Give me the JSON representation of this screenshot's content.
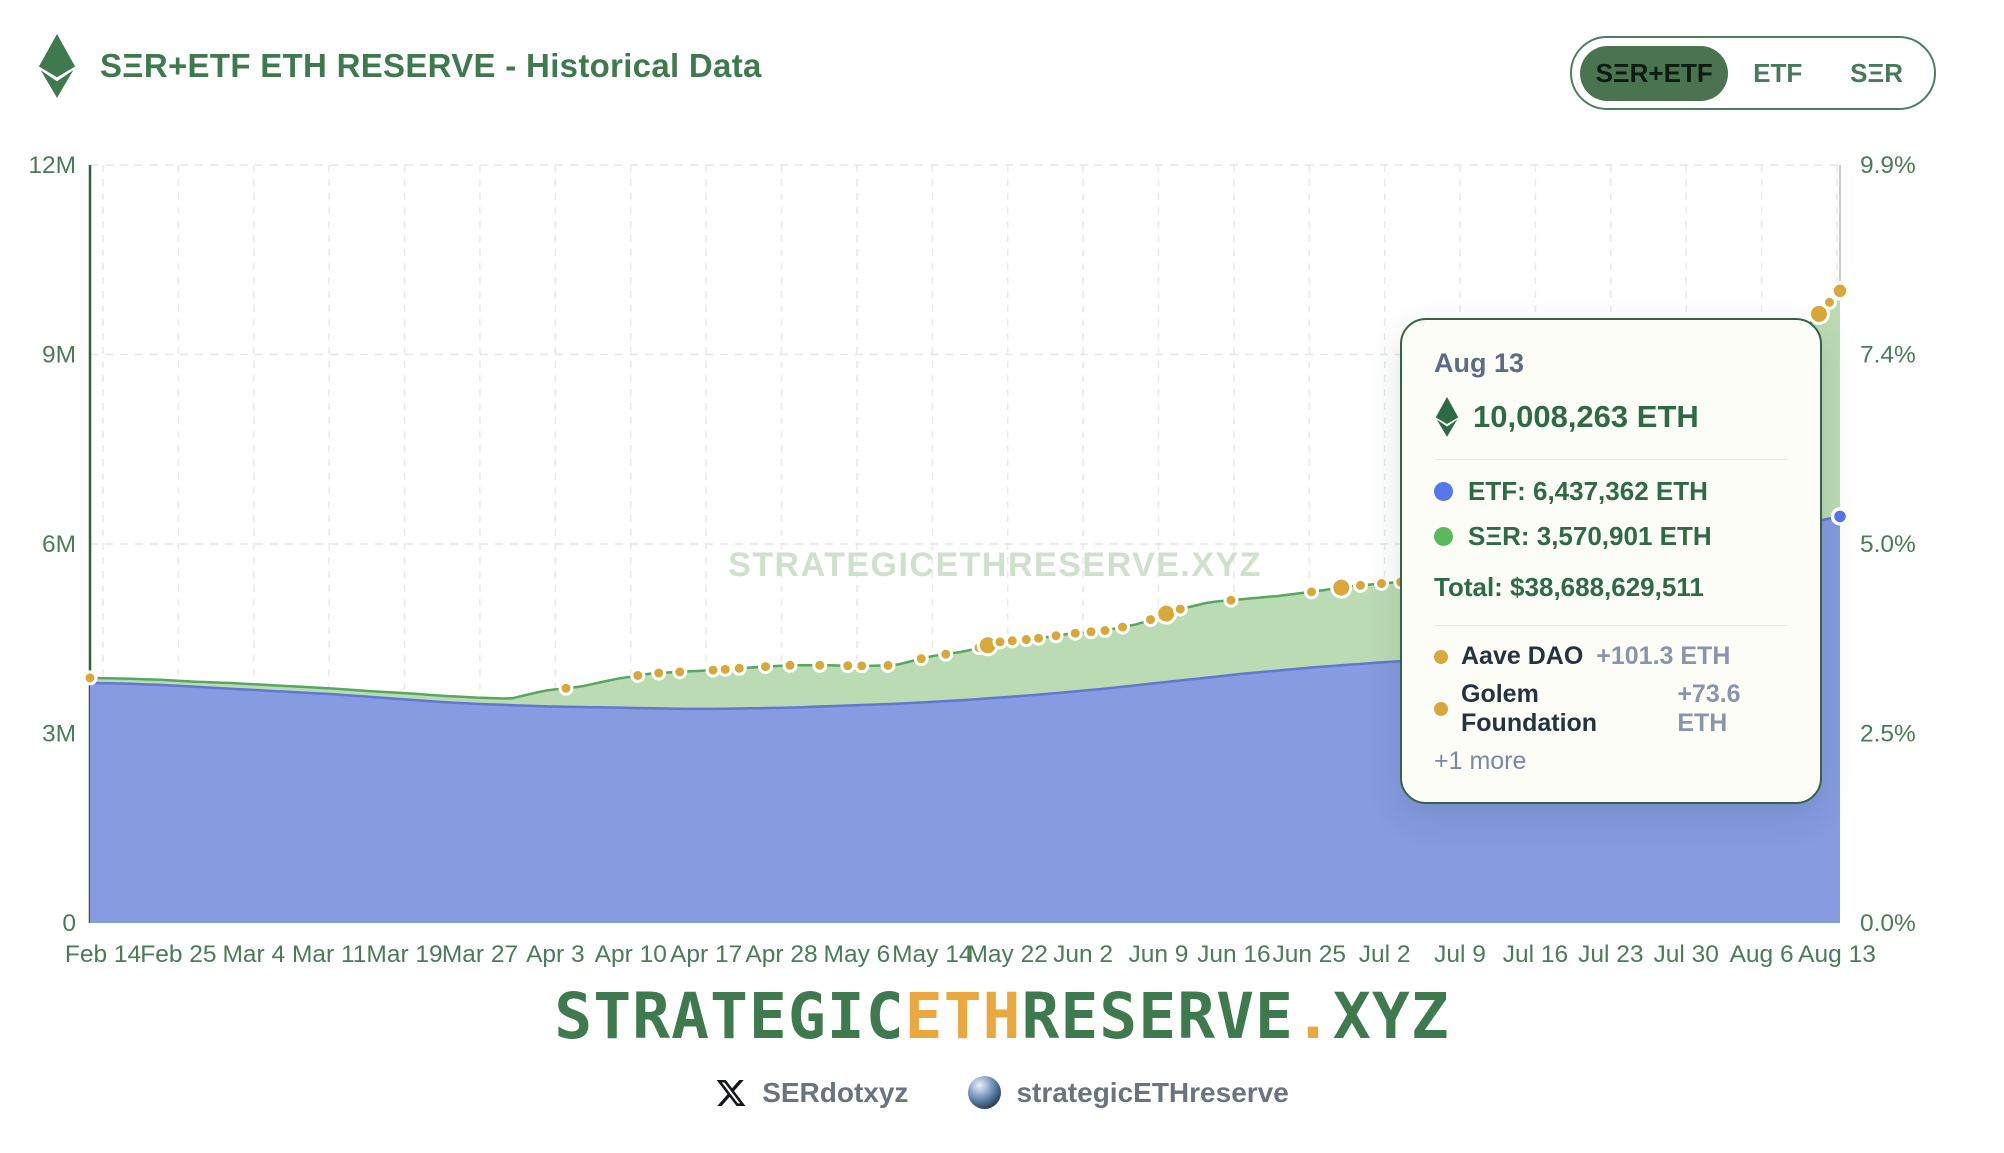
{
  "theme": {
    "green_dark": "#3e7a4e",
    "green_text": "#4a7c58",
    "orange": "#eaa83e",
    "etf_fill": "#8398e3",
    "etf_line": "#6277d2",
    "ser_fill": "#b5d8ae",
    "ser_line": "#57a75f",
    "gold": "#d9a83a",
    "legend_etf": "#5577e8",
    "legend_ser": "#5cb85f"
  },
  "header": {
    "title": "SΞR+ETF ETH RESERVE - Historical Data",
    "toggle_options": [
      {
        "label": "SΞR+ETF",
        "active": true
      },
      {
        "label": "ETF",
        "active": false
      },
      {
        "label": "SΞR",
        "active": false
      }
    ]
  },
  "chart_data": {
    "type": "area",
    "stacked": true,
    "title": "SΞR+ETF ETH RESERVE - Historical Data",
    "watermark": "STRATEGICETHRESERVE.XYZ",
    "grid": true,
    "legend_position": "tooltip-only",
    "x_tick_labels": [
      "Feb 14",
      "Feb 25",
      "Mar 4",
      "Mar 11",
      "Mar 19",
      "Mar 27",
      "Apr 3",
      "Apr 10",
      "Apr 17",
      "Apr 28",
      "May 6",
      "May 14",
      "May 22",
      "Jun 2",
      "Jun 9",
      "Jun 16",
      "Jun 25",
      "Jul 2",
      "Jul 9",
      "Jul 16",
      "Jul 23",
      "Jul 30",
      "Aug 6",
      "Aug 13"
    ],
    "ylim_m": [
      0,
      12
    ],
    "y_left_ticks": [
      {
        "label": "0",
        "value": 0
      },
      {
        "label": "3M",
        "value": 3
      },
      {
        "label": "6M",
        "value": 6
      },
      {
        "label": "9M",
        "value": 9
      },
      {
        "label": "12M",
        "value": 12
      }
    ],
    "y_right_ticks": [
      {
        "label": "0.0%",
        "value": 0
      },
      {
        "label": "2.5%",
        "value": 3
      },
      {
        "label": "5.0%",
        "value": 6
      },
      {
        "label": "7.4%",
        "value": 9
      },
      {
        "label": "9.9%",
        "value": 12
      }
    ],
    "series": [
      {
        "name": "ETF",
        "fill": "#8398e3",
        "line": "#6277d2",
        "values_m": [
          3.8,
          3.79,
          3.77,
          3.74,
          3.71,
          3.68,
          3.65,
          3.62,
          3.58,
          3.54,
          3.5,
          3.47,
          3.45,
          3.43,
          3.42,
          3.41,
          3.4,
          3.39,
          3.39,
          3.4,
          3.41,
          3.43,
          3.45,
          3.47,
          3.5,
          3.53,
          3.57,
          3.61,
          3.66,
          3.71,
          3.77,
          3.83,
          3.89,
          3.95,
          4.0,
          4.05,
          4.09,
          4.13,
          4.16,
          4.2,
          4.28,
          4.38,
          4.52,
          4.7,
          4.95,
          5.25,
          5.6,
          5.92,
          6.15,
          6.32,
          6.44
        ]
      },
      {
        "name": "SΞR",
        "fill": "#b5d8ae",
        "line": "#57a75f",
        "stack_total_values_m": [
          3.88,
          3.87,
          3.85,
          3.82,
          3.8,
          3.77,
          3.74,
          3.71,
          3.67,
          3.64,
          3.6,
          3.57,
          3.55,
          3.68,
          3.74,
          3.86,
          3.95,
          3.98,
          4.01,
          4.05,
          4.08,
          4.08,
          4.07,
          4.08,
          4.22,
          4.3,
          4.45,
          4.5,
          4.58,
          4.63,
          4.74,
          4.95,
          5.08,
          5.13,
          5.18,
          5.25,
          5.33,
          5.38,
          5.42,
          5.48,
          5.55,
          5.68,
          5.88,
          6.15,
          6.55,
          7.05,
          7.65,
          8.3,
          8.9,
          9.4,
          10.01
        ]
      }
    ],
    "final_values": {
      "date": "Aug 13",
      "total_m": 10.008263,
      "etf_m": 6.437362,
      "ser_m": 3.570901
    },
    "purchase_markers": {
      "color": "#d9a83a",
      "positions_t": [
        0.0,
        0.272,
        0.313,
        0.325,
        0.337,
        0.356,
        0.363,
        0.371,
        0.386,
        0.4,
        0.417,
        0.433,
        0.441,
        0.456,
        0.475,
        0.489,
        0.508,
        0.513,
        0.52,
        0.527,
        0.535,
        0.542,
        0.552,
        0.563,
        0.572,
        0.58,
        0.59,
        0.606,
        0.615,
        0.623,
        0.652,
        0.698,
        0.715,
        0.726,
        0.738,
        0.749,
        0.772,
        0.988,
        0.994
      ],
      "large_t": [
        0.513,
        0.615,
        0.715,
        0.988
      ]
    },
    "crosshair_t": 1.0
  },
  "tooltip": {
    "date": "Aug 13",
    "total_eth": "10,008,263 ETH",
    "rows": [
      {
        "label": "ETF: 6,437,362 ETH",
        "color": "#5577e8"
      },
      {
        "label": "SΞR: 3,570,901 ETH",
        "color": "#5cb85f"
      }
    ],
    "total_usd": "Total: $38,688,629,511",
    "protocols": [
      {
        "name": "Aave DAO",
        "delta": "+101.3 ETH",
        "color": "#d9a83a"
      },
      {
        "name": "Golem Foundation",
        "delta": "+73.6 ETH",
        "color": "#d9a83a"
      }
    ],
    "more": "+1 more"
  },
  "footer": {
    "logo_parts": [
      {
        "text": "STRATEGIC",
        "color": "#3e7a4e"
      },
      {
        "text": "ETH",
        "color": "#eaa83e"
      },
      {
        "text": "RESERVE",
        "color": "#3e7a4e"
      },
      {
        "text": ".",
        "color": "#eaa83e"
      },
      {
        "text": "XYZ",
        "color": "#3e7a4e"
      }
    ],
    "social": [
      {
        "icon": "x-logo",
        "label": "SERdotxyz"
      },
      {
        "icon": "globe-orb",
        "label": "strategicETHreserve"
      }
    ]
  }
}
